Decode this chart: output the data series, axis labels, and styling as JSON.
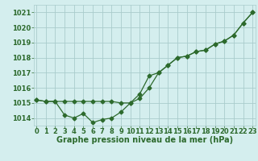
{
  "xlabel": "Graphe pression niveau de la mer (hPa)",
  "x_values": [
    0,
    1,
    2,
    3,
    4,
    5,
    6,
    7,
    8,
    9,
    10,
    11,
    12,
    13,
    14,
    15,
    16,
    17,
    18,
    19,
    20,
    21,
    22,
    23
  ],
  "line1": [
    1015.2,
    1015.1,
    1015.1,
    1014.2,
    1014.0,
    1014.3,
    1013.7,
    1013.9,
    1014.0,
    1014.4,
    1015.0,
    1015.6,
    1016.8,
    1017.0,
    1017.5,
    1018.0,
    1018.1,
    1018.4,
    1018.5,
    1018.9,
    1019.1,
    1019.5,
    1020.3,
    1021.0
  ],
  "line2": [
    1015.2,
    1015.1,
    1015.1,
    1015.1,
    1015.1,
    1015.1,
    1015.1,
    1015.1,
    1015.1,
    1015.0,
    1015.0,
    1015.3,
    1016.0,
    1017.0,
    1017.5,
    1018.0,
    1018.1,
    1018.4,
    1018.5,
    1018.9,
    1019.1,
    1019.5,
    1020.3,
    1021.0
  ],
  "line_color": "#2d6a2d",
  "marker": "D",
  "marker_size": 2.5,
  "ylim": [
    1013.5,
    1021.5
  ],
  "yticks": [
    1014,
    1015,
    1016,
    1017,
    1018,
    1019,
    1020,
    1021
  ],
  "xlim": [
    -0.3,
    23.3
  ],
  "bg_color": "#d4eeee",
  "grid_color": "#aacccc",
  "tick_color": "#2d6a2d",
  "label_color": "#2d6a2d",
  "label_fontsize": 6.0,
  "xlabel_fontsize": 7.0,
  "linewidth": 0.9
}
